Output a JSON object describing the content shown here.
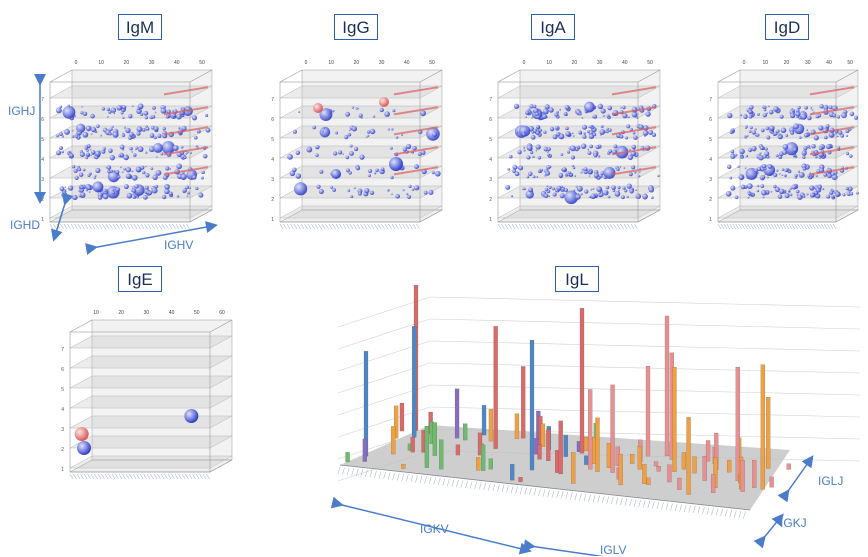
{
  "chart_data": [
    {
      "type": "scatter",
      "title": "IgM",
      "xlabel": "IGHV",
      "ylabel": "IGHJ",
      "zlabel": "IGHD",
      "x_ticks": [
        "0",
        "10",
        "20",
        "30",
        "40",
        "50"
      ],
      "y_ticks": [
        "1",
        "2",
        "3",
        "4",
        "5",
        "6",
        "7"
      ],
      "grid": true,
      "density": "high"
    },
    {
      "type": "scatter",
      "title": "IgG",
      "x_ticks": [
        "0",
        "10",
        "20",
        "30",
        "40",
        "50"
      ],
      "y_ticks": [
        "1",
        "2",
        "3",
        "4",
        "5",
        "6",
        "7"
      ],
      "grid": true,
      "density": "medium"
    },
    {
      "type": "scatter",
      "title": "IgA",
      "x_ticks": [
        "0",
        "10",
        "20",
        "30",
        "40",
        "50"
      ],
      "y_ticks": [
        "1",
        "2",
        "3",
        "4",
        "5",
        "6",
        "7"
      ],
      "grid": true,
      "density": "high"
    },
    {
      "type": "scatter",
      "title": "IgD",
      "x_ticks": [
        "0",
        "10",
        "20",
        "30",
        "40",
        "50"
      ],
      "y_ticks": [
        "1",
        "2",
        "3",
        "4",
        "5",
        "6",
        "7"
      ],
      "grid": true,
      "density": "high"
    },
    {
      "type": "scatter",
      "title": "IgE",
      "x_ticks": [
        "10",
        "20",
        "30",
        "40",
        "50",
        "60"
      ],
      "y_ticks": [
        "1",
        "2",
        "3",
        "4",
        "5",
        "6",
        "7"
      ],
      "grid": true,
      "density": "sparse",
      "points": [
        {
          "x": 10,
          "y": 1.6,
          "color": "#e08585"
        },
        {
          "x": 11,
          "y": 0.9,
          "color": "#4a5ad8"
        },
        {
          "x": 57,
          "y": 2.5,
          "color": "#4a5ad8"
        }
      ]
    },
    {
      "type": "bar",
      "title": "IgL",
      "xlabel": "IGKV",
      "xlabel2": "IGLV",
      "zlabel": "IGLJ",
      "zlabel2": "IGKJ"
    }
  ],
  "colors": {
    "title_border": "#2d5fb0",
    "annot": "#4a7cc9",
    "blue_ball": "#4a5ad8",
    "red_ball": "#e08585",
    "bars": [
      "#4f86c6",
      "#d86a6a",
      "#8c6cc2",
      "#f0a040",
      "#6dbb6d",
      "#6fb0e0",
      "#e89090"
    ]
  },
  "annotations": {
    "ighj": "IGHJ",
    "ighd": "IGHD",
    "ighv": "IGHV",
    "igkv": "IGKV",
    "iglv": "IGLV",
    "iglj": "IGLJ",
    "igkj": "IGKJ"
  }
}
